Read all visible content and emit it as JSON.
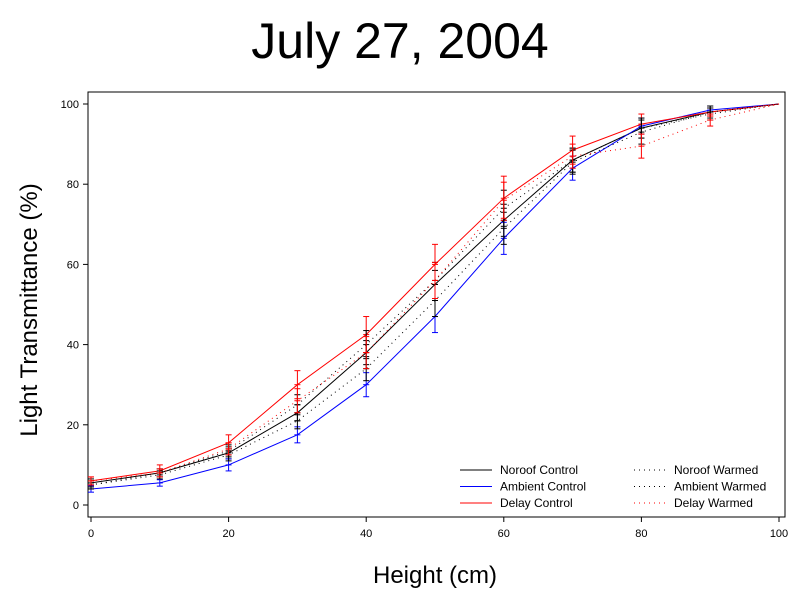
{
  "chart_data": {
    "type": "line",
    "title": "July 27, 2004",
    "xlabel": "Height (cm)",
    "ylabel": "Light Transmittance (%)",
    "xlim": [
      0,
      100
    ],
    "ylim": [
      0,
      100
    ],
    "xticks": [
      0,
      20,
      40,
      60,
      80,
      100
    ],
    "yticks": [
      0,
      20,
      40,
      60,
      80,
      100
    ],
    "grid": false,
    "legend_position": "bottom-right",
    "x": [
      0,
      10,
      20,
      30,
      40,
      50,
      60,
      70,
      80,
      90,
      100
    ],
    "series": [
      {
        "name": "Noroof Control",
        "color": "#000000",
        "dash": "solid",
        "values": [
          5.5,
          8,
          13,
          23,
          38,
          55,
          71,
          86,
          94,
          98,
          100
        ],
        "errors": [
          1,
          1,
          1.5,
          2,
          3,
          3.5,
          4,
          3,
          2.5,
          1,
          0
        ]
      },
      {
        "name": "Ambient Control",
        "color": "#0000ff",
        "dash": "solid",
        "values": [
          4,
          5.5,
          10,
          17.5,
          30,
          47,
          66.5,
          84,
          94.5,
          98.5,
          100
        ],
        "errors": [
          0.8,
          0.8,
          1.5,
          2,
          3,
          4,
          4,
          3,
          2,
          1,
          0
        ]
      },
      {
        "name": "Delay Control",
        "color": "#ff0000",
        "dash": "solid",
        "values": [
          6,
          8.5,
          15.5,
          30,
          42.5,
          60,
          76.5,
          88.5,
          95,
          98,
          100
        ],
        "errors": [
          1,
          1.5,
          2,
          3.5,
          4.5,
          5,
          5.5,
          3.5,
          2.5,
          1,
          0
        ]
      },
      {
        "name": "Noroof Warmed",
        "color": "#000000",
        "dash": "dotted",
        "values": [
          5,
          7.5,
          12.5,
          21,
          34,
          51,
          69,
          85.5,
          93,
          98,
          100
        ],
        "errors": [
          1,
          1,
          1.5,
          2,
          3,
          4,
          4,
          3,
          3,
          1.5,
          0
        ]
      },
      {
        "name": "Ambient Warmed",
        "color": "#000000",
        "dash": "dotted",
        "values": [
          5,
          8,
          13.5,
          25,
          40,
          56,
          74,
          86,
          94,
          97.5,
          100
        ],
        "errors": [
          1,
          1,
          1.5,
          2.5,
          3.5,
          4.5,
          4.5,
          3,
          2.5,
          1.5,
          0
        ]
      },
      {
        "name": "Delay Warmed",
        "color": "#ff0000",
        "dash": "dotted",
        "values": [
          6,
          8,
          14,
          26,
          38,
          56,
          76,
          87,
          89.5,
          96,
          100
        ],
        "errors": [
          1,
          1,
          1.5,
          3,
          4,
          4.5,
          4.5,
          3,
          3,
          1.5,
          0
        ]
      }
    ]
  }
}
